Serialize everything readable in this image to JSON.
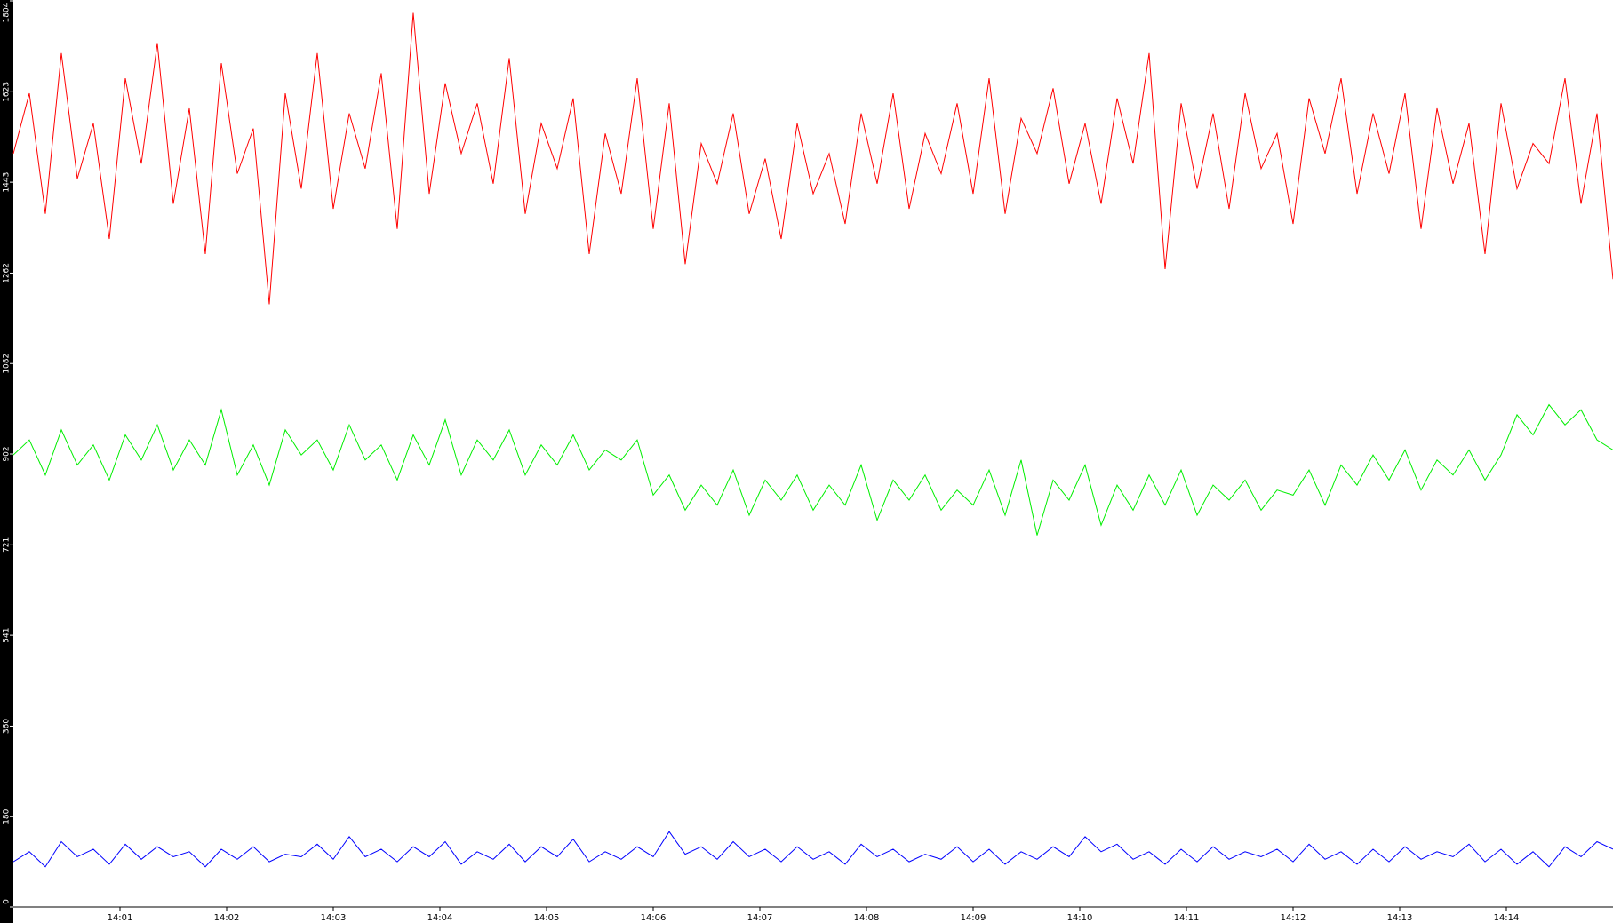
{
  "chart_data": {
    "type": "line",
    "x": [
      0,
      0.15,
      0.3,
      0.45,
      0.6,
      0.75,
      0.9,
      1.05,
      1.2,
      1.35,
      1.5,
      1.65,
      1.8,
      1.95,
      2.1,
      2.25,
      2.4,
      2.55,
      2.7,
      2.85,
      3,
      3.15,
      3.3,
      3.45,
      3.6,
      3.75,
      3.9,
      4.05,
      4.2,
      4.35,
      4.5,
      4.65,
      4.8,
      4.95,
      5.1,
      5.25,
      5.4,
      5.55,
      5.7,
      5.85,
      6,
      6.15,
      6.3,
      6.45,
      6.6,
      6.75,
      6.9,
      7.05,
      7.2,
      7.35,
      7.5,
      7.65,
      7.8,
      7.95,
      8.1,
      8.25,
      8.4,
      8.55,
      8.7,
      8.85,
      9,
      9.15,
      9.3,
      9.45,
      9.6,
      9.75,
      9.9,
      10.05,
      10.2,
      10.35,
      10.5,
      10.65,
      10.8,
      10.95,
      11.1,
      11.25,
      11.4,
      11.55,
      11.7,
      11.85,
      12,
      12.15,
      12.3,
      12.45,
      12.6,
      12.75,
      12.9,
      13.05,
      13.2,
      13.35,
      13.5,
      13.65,
      13.8,
      13.95,
      14.1,
      14.25,
      14.4,
      14.55,
      14.7,
      14.85,
      15
    ],
    "series": [
      {
        "color": "#ff0000",
        "values": [
          1500,
          1620,
          1380,
          1700,
          1450,
          1560,
          1330,
          1650,
          1480,
          1720,
          1400,
          1590,
          1300,
          1680,
          1460,
          1550,
          1200,
          1620,
          1430,
          1700,
          1390,
          1580,
          1470,
          1660,
          1350,
          1780,
          1420,
          1640,
          1500,
          1600,
          1440,
          1690,
          1380,
          1560,
          1470,
          1610,
          1300,
          1540,
          1420,
          1650,
          1350,
          1600,
          1280,
          1520,
          1440,
          1580,
          1380,
          1490,
          1330,
          1560,
          1420,
          1500,
          1360,
          1580,
          1440,
          1620,
          1390,
          1540,
          1460,
          1600,
          1420,
          1650,
          1380,
          1570,
          1500,
          1630,
          1440,
          1560,
          1400,
          1610,
          1480,
          1700,
          1270,
          1600,
          1430,
          1580,
          1390,
          1620,
          1470,
          1540,
          1360,
          1610,
          1500,
          1650,
          1420,
          1580,
          1460,
          1620,
          1350,
          1590,
          1440,
          1560,
          1300,
          1600,
          1430,
          1520,
          1480,
          1650,
          1400,
          1580,
          1250
        ]
      },
      {
        "color": "#00ee00",
        "values": [
          900,
          930,
          860,
          950,
          880,
          920,
          850,
          940,
          890,
          960,
          870,
          930,
          880,
          990,
          860,
          920,
          840,
          950,
          900,
          930,
          870,
          960,
          890,
          920,
          850,
          940,
          880,
          970,
          860,
          930,
          890,
          950,
          860,
          920,
          880,
          940,
          870,
          910,
          890,
          930,
          820,
          860,
          790,
          840,
          800,
          870,
          780,
          850,
          810,
          860,
          790,
          840,
          800,
          880,
          770,
          850,
          810,
          860,
          790,
          830,
          800,
          870,
          780,
          890,
          740,
          850,
          810,
          880,
          760,
          840,
          790,
          860,
          800,
          870,
          780,
          840,
          810,
          850,
          790,
          830,
          820,
          870,
          800,
          880,
          840,
          900,
          850,
          910,
          830,
          890,
          860,
          910,
          850,
          900,
          980,
          940,
          1000,
          960,
          990,
          930,
          910
        ]
      },
      {
        "color": "#0000ff",
        "values": [
          90,
          110,
          80,
          130,
          100,
          115,
          85,
          125,
          95,
          120,
          100,
          110,
          80,
          115,
          95,
          120,
          90,
          105,
          100,
          125,
          95,
          140,
          100,
          115,
          90,
          120,
          100,
          130,
          85,
          110,
          95,
          125,
          90,
          120,
          100,
          135,
          90,
          110,
          95,
          120,
          100,
          150,
          105,
          120,
          95,
          130,
          100,
          115,
          90,
          120,
          95,
          110,
          85,
          125,
          100,
          115,
          90,
          105,
          95,
          120,
          90,
          115,
          85,
          110,
          95,
          120,
          100,
          140,
          110,
          125,
          95,
          110,
          85,
          115,
          90,
          120,
          95,
          110,
          100,
          115,
          90,
          125,
          95,
          110,
          85,
          115,
          90,
          120,
          95,
          110,
          100,
          125,
          90,
          115,
          85,
          110,
          80,
          120,
          100,
          130,
          115
        ]
      }
    ],
    "xlim": [
      0,
      15
    ],
    "xticks": [
      {
        "value": 1,
        "label": "14:01"
      },
      {
        "value": 2,
        "label": "14:02"
      },
      {
        "value": 3,
        "label": "14:03"
      },
      {
        "value": 4,
        "label": "14:04"
      },
      {
        "value": 5,
        "label": "14:05"
      },
      {
        "value": 6,
        "label": "14:06"
      },
      {
        "value": 7,
        "label": "14:07"
      },
      {
        "value": 8,
        "label": "14:08"
      },
      {
        "value": 9,
        "label": "14:09"
      },
      {
        "value": 10,
        "label": "14:10"
      },
      {
        "value": 11,
        "label": "14:11"
      },
      {
        "value": 12,
        "label": "14:12"
      },
      {
        "value": 13,
        "label": "14:13"
      },
      {
        "value": 14,
        "label": "14:14"
      }
    ],
    "ylim": [
      0,
      1804
    ],
    "yticks": [
      0,
      180,
      360,
      541,
      721,
      902,
      1082,
      1262,
      1443,
      1623,
      1804
    ]
  }
}
